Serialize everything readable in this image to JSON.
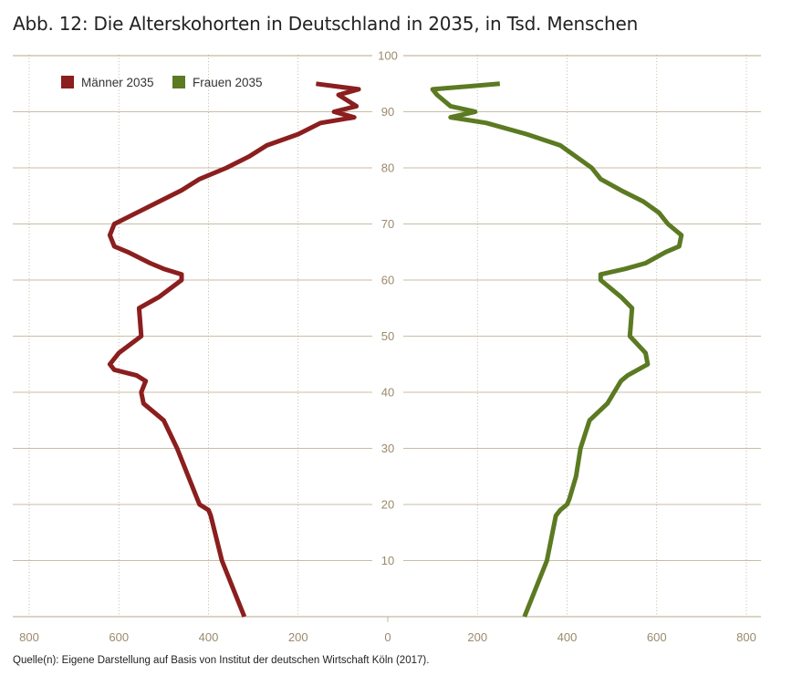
{
  "title": "Abb. 12: Die Alterskohorten in Deutschland in 2035, in Tsd. Menschen",
  "source": "Quelle(n): Eigene Darstellung auf Basis von Institut der deutschen Wirtschaft Köln (2017).",
  "colors": {
    "maenner": "#8b1e1e",
    "frauen": "#5b7a22",
    "grid": "#b6a888",
    "tick_text": "#9a8a6c"
  },
  "chart_data": {
    "type": "line",
    "title": "Abb. 12: Die Alterskohorten in Deutschland in 2035, in Tsd. Menschen",
    "xlabel": "",
    "ylabel": "",
    "xlim_left": [
      800,
      0
    ],
    "xlim_right": [
      0,
      800
    ],
    "ylim": [
      0,
      100
    ],
    "x_ticks_left": [
      "800",
      "600",
      "400",
      "200",
      "0"
    ],
    "x_ticks_right": [
      "200",
      "400",
      "600",
      "800"
    ],
    "y_ticks": [
      "10",
      "20",
      "30",
      "40",
      "50",
      "60",
      "70",
      "80",
      "90",
      "100"
    ],
    "grid": "horizontal",
    "legend_position": "top-left",
    "series": [
      {
        "name": "Männer 2035",
        "side": "left",
        "age": [
          0,
          10,
          18,
          19,
          20,
          21,
          25,
          30,
          35,
          38,
          40,
          42,
          43,
          44,
          45,
          47,
          50,
          55,
          57,
          60,
          61,
          62,
          63,
          65,
          66,
          68,
          70,
          72,
          74,
          76,
          78,
          80,
          82,
          84,
          86,
          88,
          89,
          90,
          91,
          93,
          94,
          95
        ],
        "values": [
          320,
          370,
          395,
          400,
          420,
          425,
          445,
          470,
          500,
          545,
          550,
          540,
          560,
          610,
          620,
          600,
          550,
          555,
          510,
          460,
          460,
          500,
          530,
          580,
          610,
          620,
          610,
          560,
          510,
          460,
          420,
          360,
          310,
          270,
          200,
          150,
          75,
          120,
          70,
          110,
          65,
          160
        ]
      },
      {
        "name": "Frauen 2035",
        "side": "right",
        "age": [
          0,
          10,
          18,
          19,
          20,
          21,
          25,
          30,
          35,
          38,
          40,
          42,
          43,
          45,
          47,
          50,
          55,
          57,
          60,
          61,
          62,
          63,
          65,
          66,
          68,
          70,
          72,
          74,
          76,
          78,
          80,
          82,
          84,
          86,
          88,
          89,
          90,
          91,
          93,
          94,
          95
        ],
        "values": [
          305,
          355,
          375,
          385,
          400,
          405,
          420,
          430,
          450,
          490,
          505,
          520,
          535,
          580,
          575,
          540,
          545,
          520,
          475,
          475,
          530,
          575,
          620,
          650,
          655,
          625,
          605,
          570,
          520,
          475,
          455,
          420,
          385,
          310,
          220,
          140,
          195,
          140,
          110,
          100,
          250
        ]
      }
    ]
  }
}
